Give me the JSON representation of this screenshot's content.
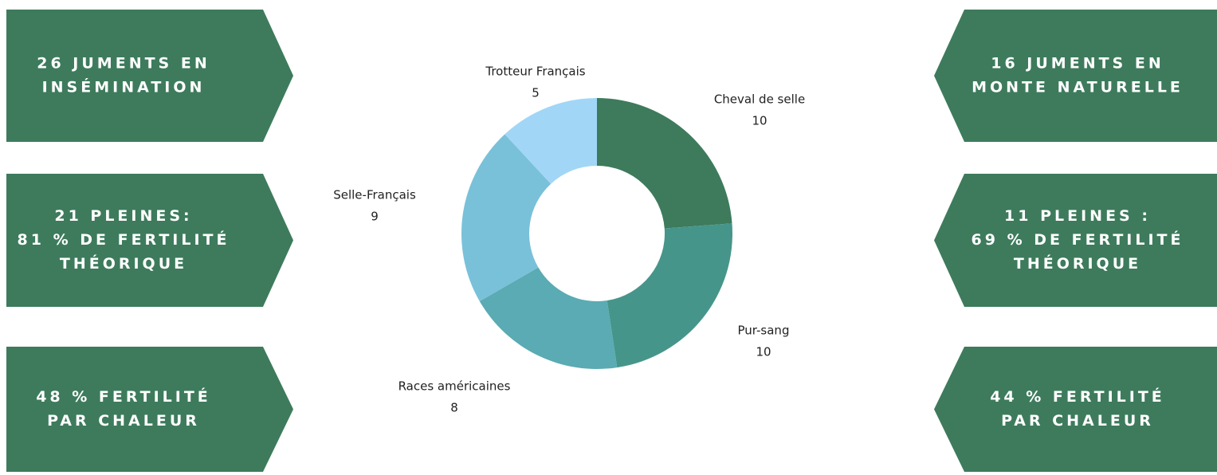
{
  "chart_data": {
    "type": "donut",
    "categories": [
      "Cheval de selle",
      "Pur-sang",
      "Races américaines",
      "Selle-Français",
      "Trotteur Français"
    ],
    "values": [
      10,
      10,
      8,
      9,
      5
    ],
    "colors": [
      "#3d7b5c",
      "#46958a",
      "#5aabb3",
      "#79c1d9",
      "#a2d6f6"
    ]
  },
  "panels": {
    "left": [
      [
        "26 JUMENTS EN",
        "INSÉMINATION"
      ],
      [
        "21 PLEINES:",
        "81 % DE FERTILITÉ",
        "THÉORIQUE"
      ],
      [
        "48 % FERTILITÉ",
        "PAR CHALEUR"
      ]
    ],
    "right": [
      [
        "16 JUMENTS EN",
        "MONTE NATURELLE"
      ],
      [
        "11 PLEINES :",
        "69 % DE FERTILITÉ",
        "THÉORIQUE"
      ],
      [
        "44 % FERTILITÉ",
        "PAR CHALEUR"
      ]
    ],
    "color": "#3d7b5c"
  }
}
